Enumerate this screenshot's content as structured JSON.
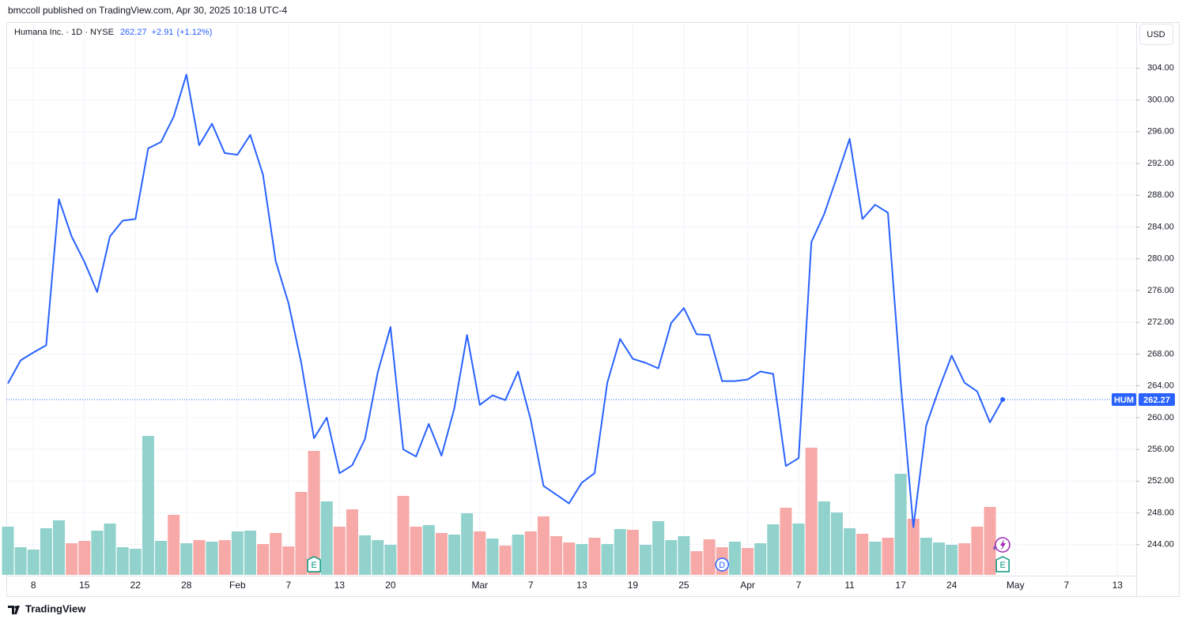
{
  "header": {
    "published": "bmccoll published on TradingView.com, Apr 30, 2025 10:18 UTC-4"
  },
  "chart_data": {
    "type": "line",
    "symbol_title": "Humana Inc. · 1D · NYSE",
    "last_price": 262.27,
    "change": "+2.91",
    "change_pct": "(+1.12%)",
    "ticker": "HUM",
    "currency": "USD",
    "color": "#2962ff",
    "categories": [
      null,
      null,
      "8",
      null,
      null,
      null,
      "15",
      null,
      null,
      null,
      "22",
      null,
      null,
      null,
      "28",
      null,
      null,
      null,
      "Feb",
      null,
      null,
      null,
      "7",
      null,
      null,
      null,
      "13",
      null,
      null,
      null,
      "20",
      null,
      null,
      null,
      null,
      null,
      null,
      "Mar",
      null,
      null,
      null,
      "7",
      null,
      null,
      null,
      "13",
      null,
      null,
      null,
      "19",
      null,
      null,
      null,
      "25",
      null,
      null,
      null,
      null,
      "Apr",
      null,
      null,
      null,
      "7",
      null,
      null,
      null,
      "11",
      null,
      null,
      null,
      "17",
      null,
      null,
      null,
      "24",
      null,
      null,
      null,
      null,
      "May",
      null,
      null,
      null,
      "7",
      null,
      null,
      null,
      "13",
      null
    ],
    "values": [
      264.3,
      267.2,
      268.2,
      269.1,
      287.5,
      282.8,
      279.6,
      275.8,
      282.8,
      284.8,
      285.0,
      293.9,
      294.7,
      297.9,
      303.2,
      294.3,
      297.0,
      293.3,
      293.1,
      295.6,
      290.6,
      279.7,
      274.4,
      266.9,
      257.4,
      260.0,
      253.0,
      254.0,
      257.3,
      265.7,
      271.4,
      256.0,
      255.1,
      259.2,
      255.2,
      261.1,
      270.4,
      261.6,
      262.8,
      262.2,
      265.8,
      259.7,
      251.4,
      250.3,
      249.2,
      251.8,
      253.0,
      264.4,
      269.9,
      267.4,
      266.9,
      266.2,
      271.9,
      273.8,
      270.5,
      270.4,
      264.6,
      264.6,
      264.8,
      265.8,
      265.5,
      253.9,
      254.9,
      282.1,
      285.6,
      290.3,
      295.1,
      285.0,
      286.8,
      285.8,
      264.5,
      246.2,
      259.0,
      263.6,
      267.8,
      264.4,
      263.3,
      259.4,
      262.27,
      null,
      null,
      null,
      null,
      null,
      null,
      null,
      null,
      null,
      null
    ],
    "volume": {
      "values": [
        61,
        35,
        32,
        59,
        69,
        40,
        43,
        56,
        65,
        35,
        33,
        176,
        43,
        76,
        40,
        44,
        42,
        44,
        55,
        56,
        39,
        53,
        36,
        105,
        157,
        93,
        61,
        83,
        50,
        44,
        38,
        100,
        61,
        63,
        53,
        51,
        78,
        55,
        46,
        37,
        51,
        55,
        74,
        49,
        41,
        39,
        47,
        39,
        58,
        57,
        38,
        68,
        44,
        49,
        30,
        45,
        35,
        42,
        34,
        40,
        64,
        85,
        65,
        161,
        93,
        79,
        59,
        52,
        42,
        47,
        128,
        71,
        47,
        41,
        38,
        40,
        61,
        86,
        null,
        null,
        null,
        null,
        null,
        null,
        null,
        null,
        null,
        null,
        null
      ],
      "colors": [
        "#92d2cc",
        "#92d2cc",
        "#92d2cc",
        "#92d2cc",
        "#92d2cc",
        "#f7a9a7",
        "#f7a9a7",
        "#92d2cc",
        "#92d2cc",
        "#92d2cc",
        "#92d2cc",
        "#92d2cc",
        "#92d2cc",
        "#f7a9a7",
        "#92d2cc",
        "#f7a9a7",
        "#92d2cc",
        "#f7a9a7",
        "#92d2cc",
        "#92d2cc",
        "#f7a9a7",
        "#f7a9a7",
        "#f7a9a7",
        "#f7a9a7",
        "#f7a9a7",
        "#92d2cc",
        "#f7a9a7",
        "#f7a9a7",
        "#92d2cc",
        "#92d2cc",
        "#92d2cc",
        "#f7a9a7",
        "#f7a9a7",
        "#92d2cc",
        "#f7a9a7",
        "#92d2cc",
        "#92d2cc",
        "#f7a9a7",
        "#92d2cc",
        "#f7a9a7",
        "#92d2cc",
        "#f7a9a7",
        "#f7a9a7",
        "#f7a9a7",
        "#f7a9a7",
        "#92d2cc",
        "#f7a9a7",
        "#92d2cc",
        "#92d2cc",
        "#f7a9a7",
        "#92d2cc",
        "#92d2cc",
        "#92d2cc",
        "#92d2cc",
        "#f7a9a7",
        "#f7a9a7",
        "#f7a9a7",
        "#92d2cc",
        "#f7a9a7",
        "#92d2cc",
        "#92d2cc",
        "#f7a9a7",
        "#92d2cc",
        "#f7a9a7",
        "#92d2cc",
        "#92d2cc",
        "#92d2cc",
        "#f7a9a7",
        "#92d2cc",
        "#f7a9a7",
        "#92d2cc",
        "#f7a9a7",
        "#92d2cc",
        "#92d2cc",
        "#92d2cc",
        "#f7a9a7",
        "#f7a9a7",
        "#f7a9a7",
        null,
        null,
        null,
        null,
        null,
        null,
        null,
        null,
        null,
        null,
        null
      ]
    },
    "ylim": [
      240.2,
      309.6
    ],
    "yticks": [
      {
        "value": 244,
        "label": "244.00"
      },
      {
        "value": 248,
        "label": "248.00"
      },
      {
        "value": 252,
        "label": "252.00"
      },
      {
        "value": 256,
        "label": "256.00"
      },
      {
        "value": 260,
        "label": "260.00"
      },
      {
        "value": 264,
        "label": "264.00"
      },
      {
        "value": 268,
        "label": "268.00"
      },
      {
        "value": 272,
        "label": "272.00"
      },
      {
        "value": 276,
        "label": "276.00"
      },
      {
        "value": 280,
        "label": "280.00"
      },
      {
        "value": 284,
        "label": "284.00"
      },
      {
        "value": 288,
        "label": "288.00"
      },
      {
        "value": 292,
        "label": "292.00"
      },
      {
        "value": 296,
        "label": "296.00"
      },
      {
        "value": 300,
        "label": "300.00"
      },
      {
        "value": 304,
        "label": "304.00"
      }
    ],
    "grid": true,
    "events": [
      {
        "index": 24,
        "label": "E"
      },
      {
        "index": 56,
        "label": "D"
      },
      {
        "index": 78,
        "label": "E"
      }
    ]
  },
  "footer": {
    "brand": "TradingView"
  }
}
